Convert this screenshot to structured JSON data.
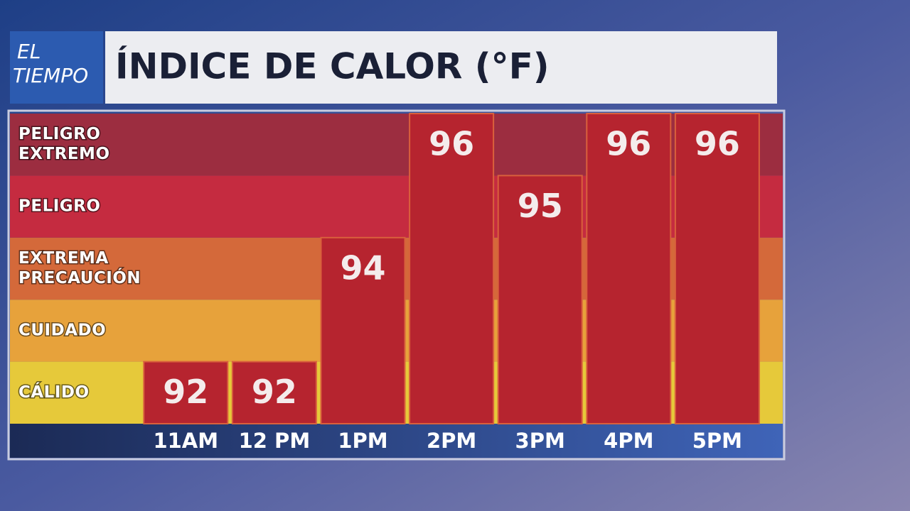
{
  "logo": [
    "EL",
    "TIEMPO"
  ],
  "chart_data": {
    "type": "bar",
    "title": "ÍNDICE DE CALOR (°F)",
    "categories": [
      "11AM",
      "12 PM",
      "1PM",
      "2PM",
      "3PM",
      "4PM",
      "5PM"
    ],
    "values": [
      92,
      92,
      94,
      96,
      95,
      96,
      96
    ],
    "color": "#b6242f",
    "ylim": [
      91,
      96
    ],
    "bands": [
      {
        "label": [
          "CÁLIDO"
        ],
        "color": "#e6c93a"
      },
      {
        "label": [
          "CUIDADO"
        ],
        "color": "#e7a23b"
      },
      {
        "label": [
          "EXTREMA",
          "PRECAUCIÓN"
        ],
        "color": "#d4693a"
      },
      {
        "label": [
          "PELIGRO"
        ],
        "color": "#c52b40"
      },
      {
        "label": [
          "PELIGRO",
          "EXTREMO"
        ],
        "color": "#9c2d40"
      }
    ]
  }
}
